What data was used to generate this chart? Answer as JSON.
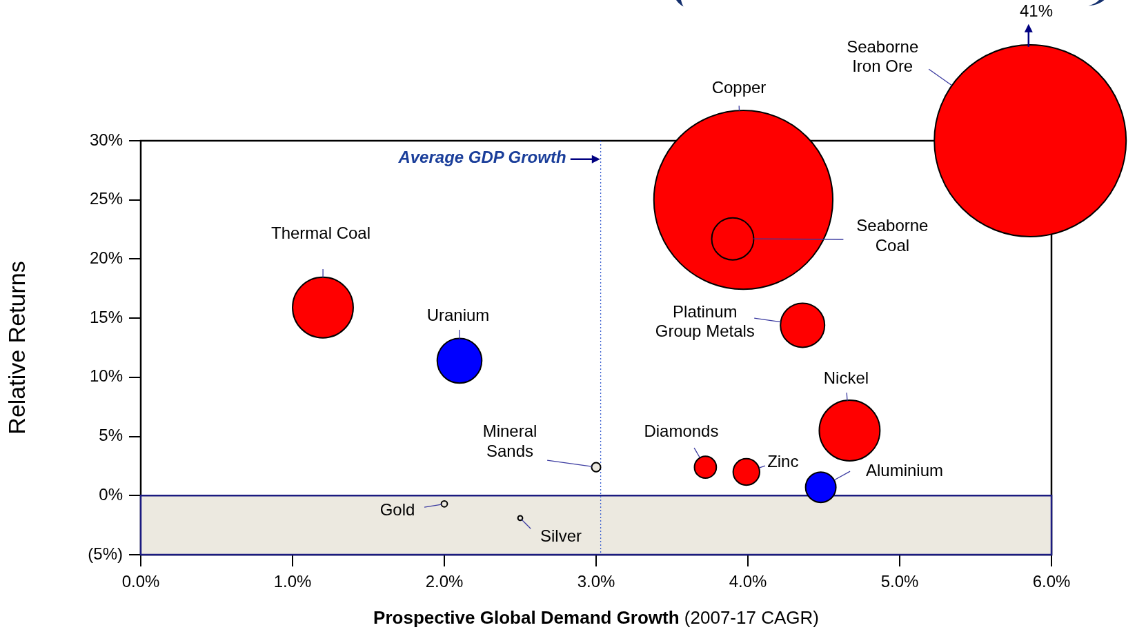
{
  "chart_data": {
    "type": "bubble",
    "xlabel": "Prospective Global Demand Growth (2007-17 CAGR)",
    "ylabel": "Relative Returns",
    "xlim": [
      0,
      6
    ],
    "xticks": [
      {
        "value": 0,
        "label": "0.0%"
      },
      {
        "value": 1,
        "label": "1.0%"
      },
      {
        "value": 2,
        "label": "2.0%"
      },
      {
        "value": 3,
        "label": "3.0%"
      },
      {
        "value": 4,
        "label": "4.0%"
      },
      {
        "value": 5,
        "label": "5.0%"
      },
      {
        "value": 6,
        "label": "6.0%"
      }
    ],
    "ylim": [
      -5,
      30
    ],
    "yticks": [
      {
        "value": -5,
        "label": "(5%)"
      },
      {
        "value": 0,
        "label": "0%"
      },
      {
        "value": 5,
        "label": "5%"
      },
      {
        "value": 10,
        "label": "10%"
      },
      {
        "value": 15,
        "label": "15%"
      },
      {
        "value": 20,
        "label": "20%"
      },
      {
        "value": 25,
        "label": "25%"
      },
      {
        "value": 30,
        "label": "30%"
      }
    ],
    "ref_lines": [
      {
        "axis": "x",
        "value": 3.03,
        "label": "Average GDP Growth",
        "color": "#3a5fd0",
        "line_style": "dotted"
      }
    ],
    "bands": [
      {
        "axis": "y",
        "from": -5,
        "to": 0,
        "color": "#ece9e0"
      }
    ],
    "annotations": [
      "41%"
    ],
    "series": [
      {
        "name": "Thermal Coal",
        "color": "#ff0000",
        "x": [
          1.2
        ],
        "values": [
          15.9
        ],
        "sizes": [
          0.1
        ]
      },
      {
        "name": "Uranium",
        "color": "#0000ff",
        "x": [
          2.1
        ],
        "values": [
          11.4
        ],
        "sizes": [
          0.054
        ]
      },
      {
        "name": "Mineral Sands",
        "color": "#ece9e0",
        "x": [
          3.0
        ],
        "values": [
          2.4
        ],
        "sizes": [
          0.0022
        ]
      },
      {
        "name": "Gold",
        "color": "#ece9e0",
        "x": [
          2.0
        ],
        "values": [
          -0.7
        ],
        "sizes": [
          0.001
        ]
      },
      {
        "name": "Silver",
        "color": "#ece9e0",
        "x": [
          2.5
        ],
        "values": [
          -1.9
        ],
        "sizes": [
          0.0006
        ]
      },
      {
        "name": "Diamonds",
        "color": "#ff0000",
        "x": [
          3.72
        ],
        "values": [
          2.4
        ],
        "sizes": [
          0.013
        ]
      },
      {
        "name": "Zinc",
        "color": "#ff0000",
        "x": [
          3.99
        ],
        "values": [
          2.0
        ],
        "sizes": [
          0.019
        ]
      },
      {
        "name": "Aluminium",
        "color": "#0000ff",
        "x": [
          4.48
        ],
        "values": [
          0.7
        ],
        "sizes": [
          0.025
        ]
      },
      {
        "name": "Nickel",
        "color": "#ff0000",
        "x": [
          4.67
        ],
        "values": [
          5.5
        ],
        "sizes": [
          0.1
        ]
      },
      {
        "name": "Platinum Group Metals",
        "color": "#ff0000",
        "x": [
          4.36
        ],
        "values": [
          14.4
        ],
        "sizes": [
          0.053
        ]
      },
      {
        "name": "Copper",
        "color": "#ff0000",
        "x": [
          3.97
        ],
        "values": [
          25.0
        ],
        "sizes": [
          0.87
        ]
      },
      {
        "name": "Seaborne Coal",
        "color": "#ff0000",
        "x": [
          3.9
        ],
        "values": [
          21.7
        ],
        "sizes": [
          0.048
        ]
      },
      {
        "name": "Seaborne Iron Ore",
        "color": "#ff0000",
        "x": [
          5.86
        ],
        "values": [
          30
        ],
        "sizes": [
          1
        ]
      }
    ]
  }
}
